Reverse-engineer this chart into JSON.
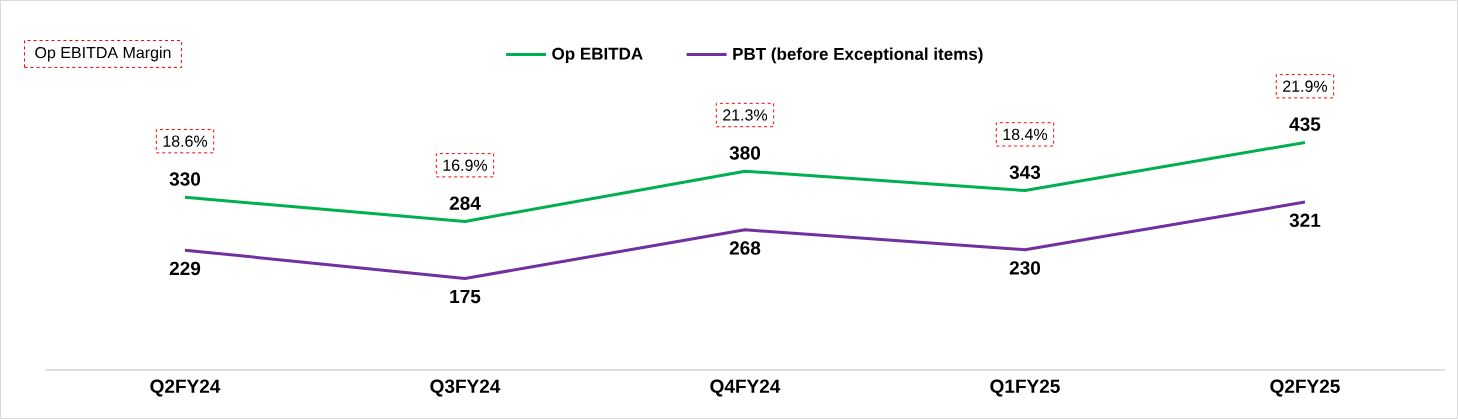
{
  "chart_data": {
    "type": "line",
    "categories": [
      "Q2FY24",
      "Q3FY24",
      "Q4FY24",
      "Q1FY25",
      "Q2FY25"
    ],
    "series": [
      {
        "name": "Op EBITDA",
        "color": "#00b050",
        "values": [
          330,
          284,
          380,
          343,
          435
        ]
      },
      {
        "name": "PBT (before Exceptional items)",
        "color": "#7030a0",
        "values": [
          229,
          175,
          268,
          230,
          321
        ]
      }
    ],
    "data_labels": true,
    "legend": "top",
    "marker": "none",
    "line_style": "solid",
    "annotations": [
      "Op EBITDA Margin",
      "18.6%",
      "16.9%",
      "21.3%",
      "18.4%",
      "21.9%"
    ]
  }
}
